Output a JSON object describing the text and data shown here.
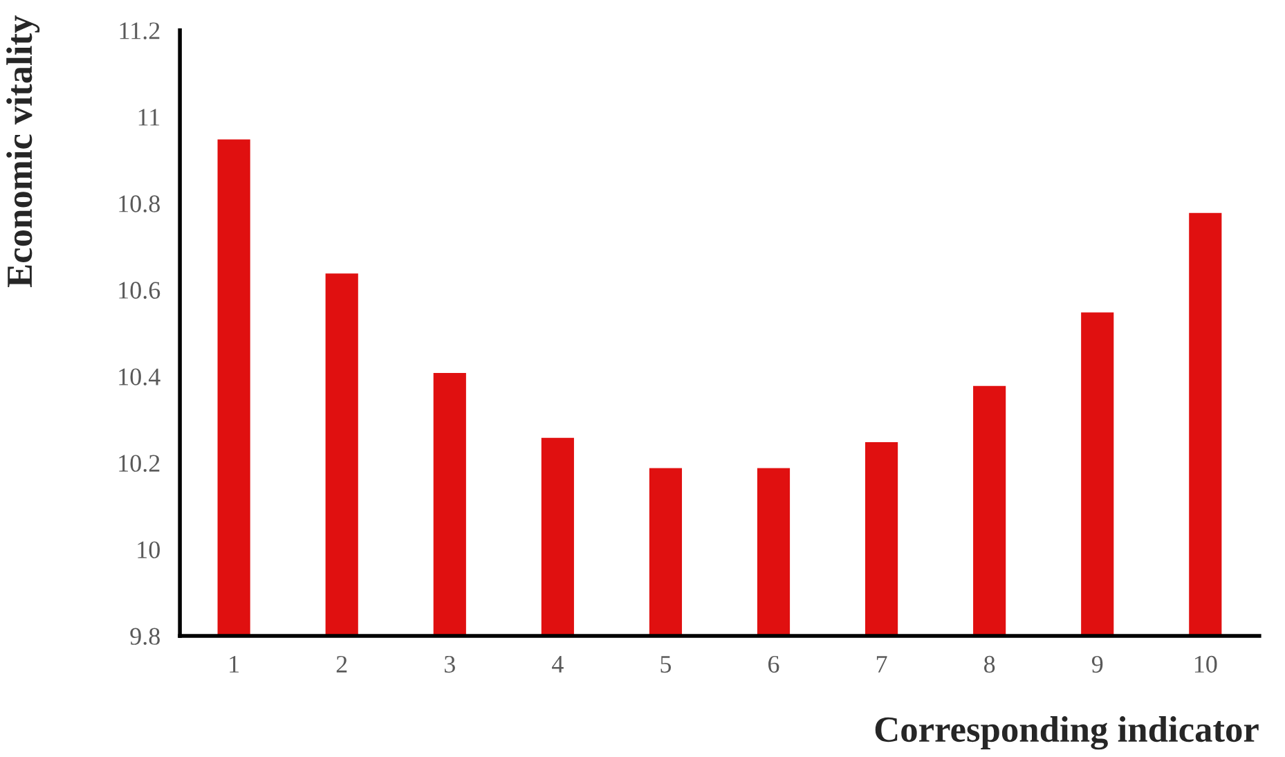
{
  "chart_data": {
    "type": "bar",
    "xlabel": "Corresponding indicator",
    "ylabel": "Economic vitality",
    "categories": [
      "1",
      "2",
      "3",
      "4",
      "5",
      "6",
      "7",
      "8",
      "9",
      "10"
    ],
    "series": [
      {
        "color": "#e01010",
        "values": [
          10.95,
          10.64,
          10.41,
          10.26,
          10.19,
          10.19,
          10.25,
          10.38,
          10.55,
          10.78
        ]
      }
    ],
    "ylim": [
      9.8,
      11.2
    ],
    "yticks": [
      9.8,
      10,
      10.2,
      10.4,
      10.6,
      10.8,
      11,
      11.2
    ],
    "grid": false,
    "legend": false
  }
}
